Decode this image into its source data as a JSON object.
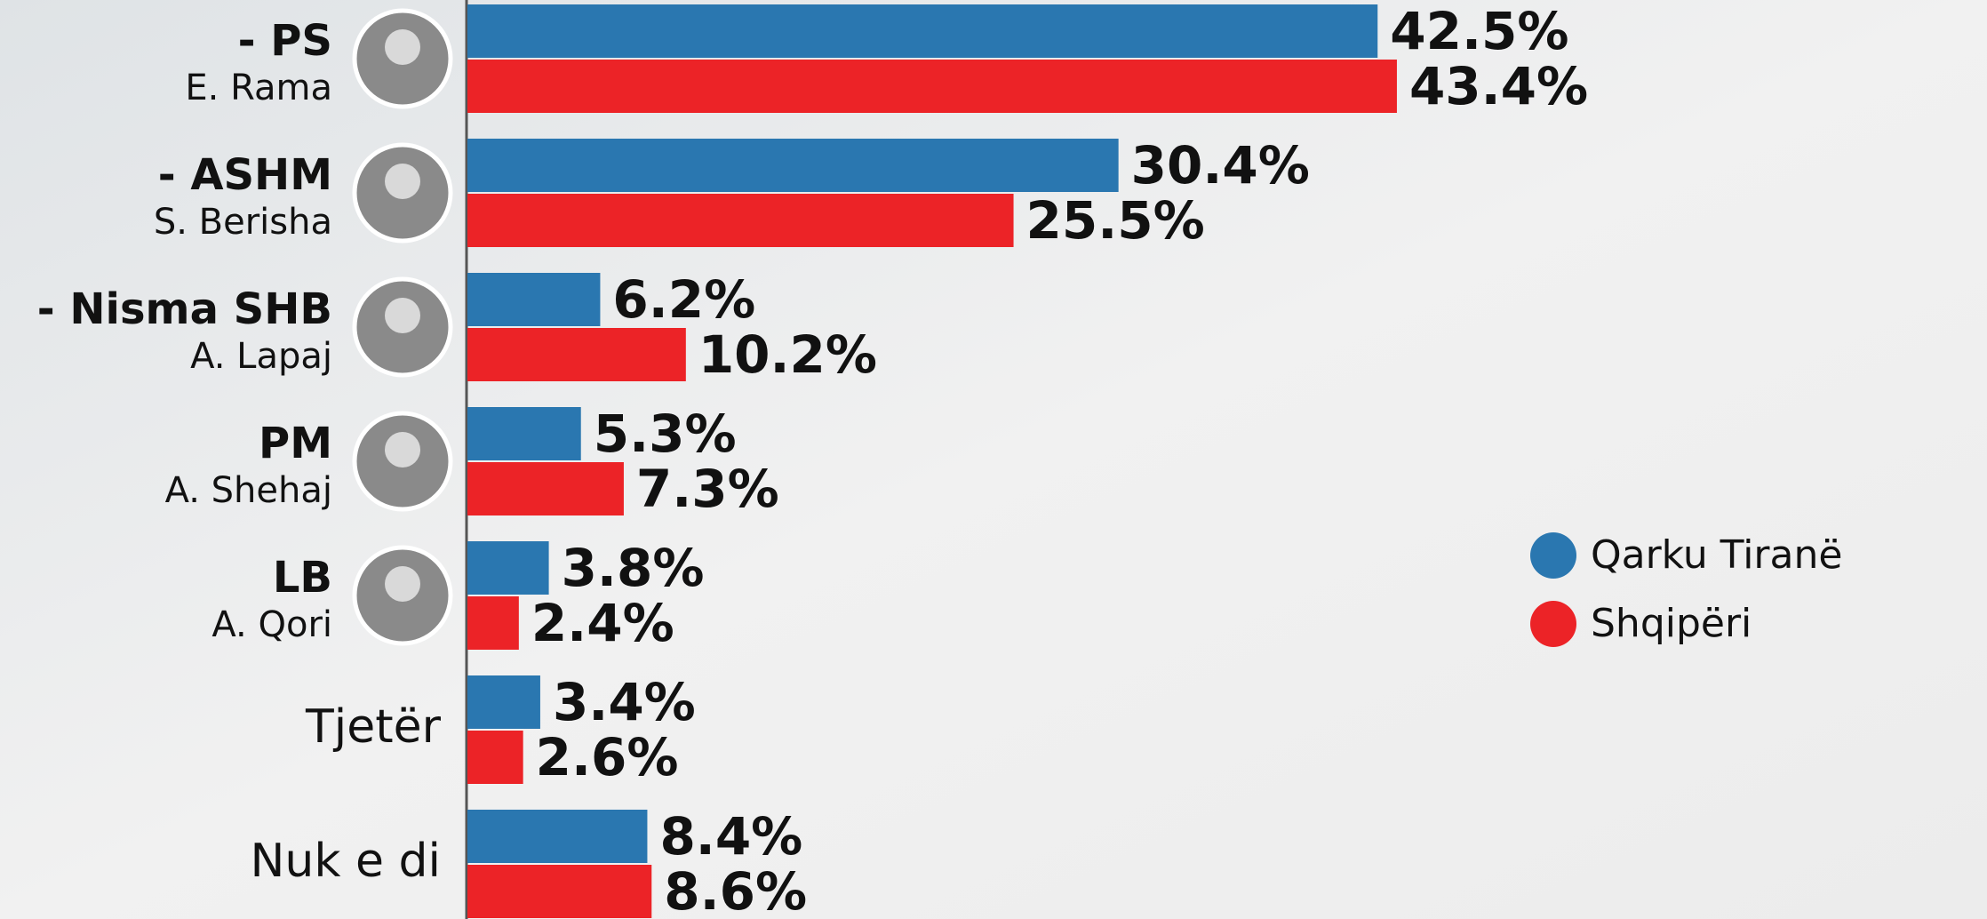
{
  "chart_data": {
    "type": "bar",
    "orientation": "horizontal",
    "categories": [
      "- PS",
      "- ASHM",
      "- Nisma SHB",
      "PM",
      "LB",
      "Tjetër",
      "Nuk e di"
    ],
    "leaders": [
      "E. Rama",
      "S. Berisha",
      "A. Lapaj",
      "A. Shehaj",
      "A. Qori",
      null,
      null
    ],
    "series": [
      {
        "name": "Qarku Tiranë",
        "color": "#2a77b0",
        "values": [
          42.5,
          30.4,
          6.2,
          5.3,
          3.8,
          3.4,
          8.4
        ],
        "value_labels": [
          "42.5%",
          "30.4%",
          "6.2%",
          "5.3%",
          "3.8%",
          "3.4%",
          "8.4%"
        ]
      },
      {
        "name": "Shqipëri",
        "color": "#ec2327",
        "values": [
          43.4,
          25.5,
          10.2,
          7.3,
          2.4,
          2.6,
          8.6
        ],
        "value_labels": [
          "43.4%",
          "25.5%",
          "10.2%",
          "7.3%",
          "2.4%",
          "2.6%",
          "8.6%"
        ]
      }
    ],
    "legend": "right"
  }
}
